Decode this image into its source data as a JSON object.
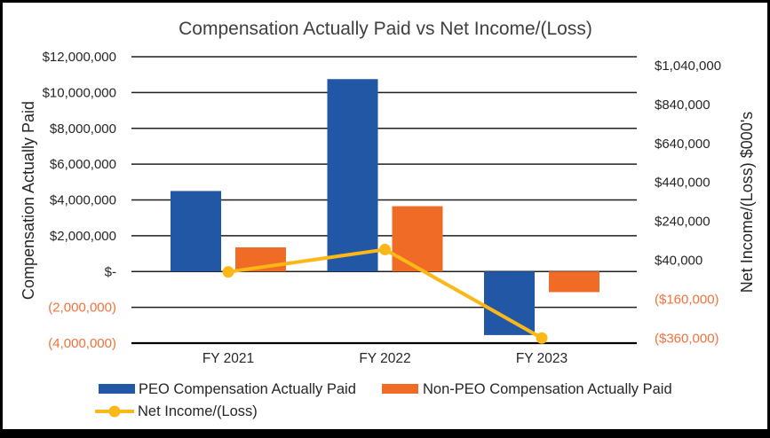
{
  "chart_data": {
    "type": "combo-bar-line",
    "title": "Compensation Actually Paid vs Net Income/(Loss)",
    "categories": [
      "FY 2021",
      "FY 2022",
      "FY 2023"
    ],
    "series": [
      {
        "name": "PEO Compensation Actually Paid",
        "type": "bar",
        "axis": "left",
        "color": "#2257A5",
        "values": [
          4500000,
          10750000,
          -3550000
        ]
      },
      {
        "name": "Non-PEO Compensation Actually Paid",
        "type": "bar",
        "axis": "left",
        "color": "#F06B26",
        "values": [
          1350000,
          3650000,
          -1150000
        ]
      },
      {
        "name": "Net Income/(Loss)",
        "type": "line",
        "axis": "right",
        "color": "#FDB716",
        "values": [
          -20000,
          95000,
          -360000
        ]
      }
    ],
    "left_axis": {
      "title": "Compensation Actually Paid",
      "tick_labels": [
        "$12,000,000",
        "$10,000,000",
        "$8,000,000",
        "$6,000,000",
        "$4,000,000",
        "$2,000,000",
        "$-",
        "(2,000,000)",
        "(4,000,000)"
      ],
      "tick_values": [
        12000000,
        10000000,
        8000000,
        6000000,
        4000000,
        2000000,
        0,
        -2000000,
        -4000000
      ],
      "range": [
        -4000000,
        12000000
      ]
    },
    "right_axis": {
      "title": "Net Income/(Loss) $000's",
      "tick_labels": [
        "$1,040,000",
        "$840,000",
        "$640,000",
        "$440,000",
        "$240,000",
        "$40,000",
        "($160,000)",
        "($360,000)"
      ],
      "tick_values": [
        1040000,
        840000,
        640000,
        440000,
        240000,
        40000,
        -160000,
        -360000
      ]
    },
    "grid": true,
    "legend_position": "bottom"
  },
  "colors": {
    "text": "#262626",
    "negative_text": "#F2713B",
    "title_text": "#3F3F3F",
    "gridline": "#1F1F1F",
    "axis_line": "#000000",
    "background": "#FFFFFF",
    "frame_border": "#000000"
  }
}
